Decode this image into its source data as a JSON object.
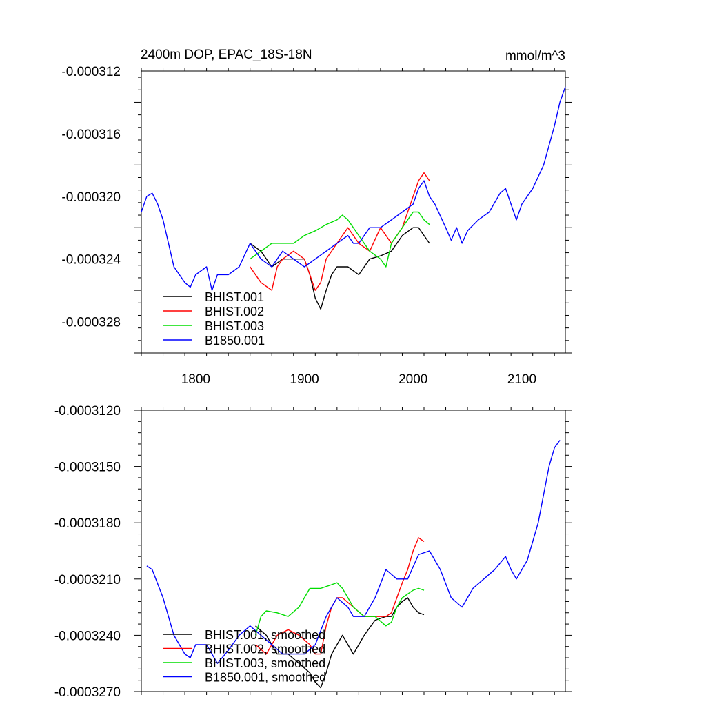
{
  "figure": {
    "title_left": "2400m DOP, EPAC_18S-18N",
    "title_right": "mmol/m^3"
  },
  "chart_data": [
    {
      "type": "line",
      "title": "2400m DOP, EPAC_18S-18N",
      "units": "mmol/m^3",
      "xlim": [
        1750,
        2140
      ],
      "ylim": [
        -0.00033,
        -0.000312
      ],
      "x_ticks": [
        1800,
        1900,
        2000,
        2100
      ],
      "x_tick_labels": [
        "1800",
        "1900",
        "2000",
        "2100"
      ],
      "y_ticks": [
        -0.000312,
        -0.000316,
        -0.00032,
        -0.000324,
        -0.000328
      ],
      "y_tick_labels": [
        "-0.000312",
        "-0.000316",
        "-0.000320",
        "-0.000324",
        "-0.000328"
      ],
      "legend": "bottom-left",
      "grid": false,
      "series": [
        {
          "name": "BHIST.001",
          "color": "#000000",
          "x": [
            1850,
            1860,
            1870,
            1880,
            1890,
            1900,
            1905,
            1910,
            1915,
            1920,
            1925,
            1930,
            1940,
            1950,
            1960,
            1970,
            1980,
            1990,
            2000,
            2005,
            2010,
            2015
          ],
          "y": [
            -0.000323,
            -0.0003235,
            -0.0003245,
            -0.000324,
            -0.000324,
            -0.000324,
            -0.000325,
            -0.0003265,
            -0.0003272,
            -0.000326,
            -0.000325,
            -0.0003245,
            -0.0003245,
            -0.000325,
            -0.000324,
            -0.0003238,
            -0.0003235,
            -0.0003225,
            -0.000322,
            -0.000322,
            -0.0003225,
            -0.000323
          ]
        },
        {
          "name": "BHIST.002",
          "color": "#ff0000",
          "x": [
            1850,
            1860,
            1870,
            1875,
            1880,
            1890,
            1900,
            1905,
            1910,
            1915,
            1920,
            1930,
            1940,
            1950,
            1960,
            1970,
            1980,
            1990,
            2000,
            2005,
            2010,
            2015
          ],
          "y": [
            -0.0003245,
            -0.0003255,
            -0.000326,
            -0.0003245,
            -0.000324,
            -0.0003235,
            -0.000324,
            -0.000325,
            -0.000326,
            -0.0003255,
            -0.000324,
            -0.000323,
            -0.000322,
            -0.000323,
            -0.0003235,
            -0.000322,
            -0.000323,
            -0.000322,
            -0.00032,
            -0.000319,
            -0.0003185,
            -0.000319
          ]
        },
        {
          "name": "BHIST.003",
          "color": "#00dd00",
          "x": [
            1850,
            1860,
            1870,
            1880,
            1890,
            1900,
            1910,
            1920,
            1930,
            1935,
            1940,
            1950,
            1960,
            1970,
            1975,
            1980,
            1990,
            2000,
            2005,
            2010,
            2015
          ],
          "y": [
            -0.000324,
            -0.0003235,
            -0.000323,
            -0.000323,
            -0.000323,
            -0.0003225,
            -0.0003222,
            -0.0003218,
            -0.0003215,
            -0.0003212,
            -0.0003215,
            -0.0003225,
            -0.0003235,
            -0.000324,
            -0.0003245,
            -0.000323,
            -0.000322,
            -0.000321,
            -0.000321,
            -0.0003215,
            -0.0003218
          ]
        },
        {
          "name": "B1850.001",
          "color": "#0000ff",
          "x": [
            1750,
            1755,
            1760,
            1765,
            1770,
            1775,
            1780,
            1790,
            1795,
            1800,
            1810,
            1815,
            1820,
            1830,
            1840,
            1850,
            1860,
            1870,
            1880,
            1890,
            1900,
            1910,
            1920,
            1930,
            1940,
            1945,
            1950,
            1960,
            1970,
            1980,
            1990,
            2000,
            2005,
            2010,
            2015,
            2020,
            2030,
            2035,
            2040,
            2045,
            2050,
            2060,
            2070,
            2080,
            2085,
            2090,
            2095,
            2100,
            2110,
            2120,
            2130,
            2135,
            2140
          ],
          "y": [
            -0.000321,
            -0.00032,
            -0.0003198,
            -0.0003205,
            -0.0003215,
            -0.000323,
            -0.0003245,
            -0.0003255,
            -0.0003258,
            -0.000325,
            -0.0003245,
            -0.000326,
            -0.000325,
            -0.000325,
            -0.0003245,
            -0.000323,
            -0.000324,
            -0.0003245,
            -0.0003235,
            -0.000324,
            -0.0003245,
            -0.000324,
            -0.0003235,
            -0.000323,
            -0.0003225,
            -0.000323,
            -0.000323,
            -0.000322,
            -0.000322,
            -0.0003215,
            -0.000321,
            -0.0003205,
            -0.0003195,
            -0.000319,
            -0.00032,
            -0.0003205,
            -0.000322,
            -0.0003228,
            -0.000322,
            -0.000323,
            -0.0003222,
            -0.0003215,
            -0.000321,
            -0.0003198,
            -0.0003195,
            -0.0003205,
            -0.0003215,
            -0.0003205,
            -0.0003195,
            -0.000318,
            -0.0003155,
            -0.000314,
            -0.000313
          ]
        }
      ]
    },
    {
      "type": "line",
      "xlim": [
        1750,
        2140
      ],
      "ylim": [
        -0.000327,
        -0.000312
      ],
      "x_ticks": [
        1800,
        1900,
        2000,
        2100
      ],
      "x_tick_labels": [
        "",
        "",
        "",
        ""
      ],
      "y_ticks": [
        -0.000312,
        -0.000315,
        -0.000318,
        -0.000321,
        -0.000324,
        -0.000327
      ],
      "y_tick_labels": [
        "-0.0003120",
        "-0.0003150",
        "-0.0003180",
        "-0.0003210",
        "-0.0003240",
        "-0.0003270"
      ],
      "legend": "bottom-left",
      "grid": false,
      "series": [
        {
          "name": "BHIST.001, smoothed",
          "color": "#000000",
          "x": [
            1855,
            1865,
            1875,
            1885,
            1895,
            1905,
            1910,
            1915,
            1920,
            1925,
            1930,
            1935,
            1945,
            1955,
            1965,
            1975,
            1980,
            1985,
            1990,
            1995,
            2000,
            2005,
            2010
          ],
          "y": [
            -0.0003235,
            -0.000324,
            -0.000325,
            -0.000325,
            -0.0003255,
            -0.000326,
            -0.0003265,
            -0.0003268,
            -0.000326,
            -0.000325,
            -0.0003245,
            -0.000324,
            -0.000325,
            -0.000324,
            -0.0003232,
            -0.000323,
            -0.000323,
            -0.0003225,
            -0.0003222,
            -0.000322,
            -0.0003225,
            -0.0003228,
            -0.0003229
          ]
        },
        {
          "name": "BHIST.002, smoothed",
          "color": "#ff0000",
          "x": [
            1855,
            1865,
            1875,
            1885,
            1895,
            1905,
            1910,
            1915,
            1920,
            1925,
            1930,
            1935,
            1945,
            1955,
            1965,
            1975,
            1980,
            1985,
            1990,
            1995,
            2000,
            2005,
            2010
          ],
          "y": [
            -0.0003245,
            -0.000325,
            -0.000324,
            -0.0003237,
            -0.000324,
            -0.0003245,
            -0.000325,
            -0.000325,
            -0.0003235,
            -0.0003225,
            -0.000322,
            -0.000322,
            -0.0003225,
            -0.000323,
            -0.000323,
            -0.000323,
            -0.0003228,
            -0.000322,
            -0.0003212,
            -0.0003205,
            -0.0003195,
            -0.0003188,
            -0.000319
          ]
        },
        {
          "name": "BHIST.003, smoothed",
          "color": "#00dd00",
          "x": [
            1855,
            1860,
            1865,
            1875,
            1885,
            1895,
            1900,
            1905,
            1915,
            1920,
            1925,
            1930,
            1935,
            1945,
            1955,
            1965,
            1975,
            1980,
            1985,
            1990,
            1995,
            2000,
            2005,
            2010
          ],
          "y": [
            -0.000324,
            -0.000323,
            -0.0003227,
            -0.0003228,
            -0.000323,
            -0.0003225,
            -0.000322,
            -0.0003215,
            -0.0003215,
            -0.0003214,
            -0.0003213,
            -0.0003212,
            -0.0003215,
            -0.0003225,
            -0.000323,
            -0.000323,
            -0.0003235,
            -0.0003233,
            -0.0003225,
            -0.000322,
            -0.0003218,
            -0.0003216,
            -0.0003215,
            -0.0003216
          ]
        },
        {
          "name": "B1850.001, smoothed",
          "color": "#0000ff",
          "x": [
            1755,
            1760,
            1770,
            1780,
            1790,
            1795,
            1800,
            1810,
            1815,
            1820,
            1830,
            1840,
            1850,
            1860,
            1870,
            1880,
            1890,
            1900,
            1910,
            1920,
            1930,
            1940,
            1945,
            1955,
            1965,
            1975,
            1985,
            1995,
            2005,
            2015,
            2025,
            2035,
            2045,
            2055,
            2065,
            2075,
            2085,
            2090,
            2095,
            2105,
            2115,
            2125,
            2130,
            2135
          ],
          "y": [
            -0.0003203,
            -0.0003205,
            -0.000322,
            -0.000324,
            -0.000325,
            -0.0003252,
            -0.0003245,
            -0.0003245,
            -0.000325,
            -0.0003255,
            -0.0003248,
            -0.000324,
            -0.0003235,
            -0.000324,
            -0.0003245,
            -0.000325,
            -0.000325,
            -0.000325,
            -0.0003245,
            -0.000323,
            -0.000322,
            -0.0003225,
            -0.000323,
            -0.000323,
            -0.000322,
            -0.0003205,
            -0.000321,
            -0.000321,
            -0.0003197,
            -0.0003195,
            -0.0003205,
            -0.000322,
            -0.0003225,
            -0.0003215,
            -0.000321,
            -0.0003205,
            -0.0003198,
            -0.0003205,
            -0.000321,
            -0.00032,
            -0.000318,
            -0.000315,
            -0.000314,
            -0.0003136
          ]
        }
      ]
    }
  ]
}
